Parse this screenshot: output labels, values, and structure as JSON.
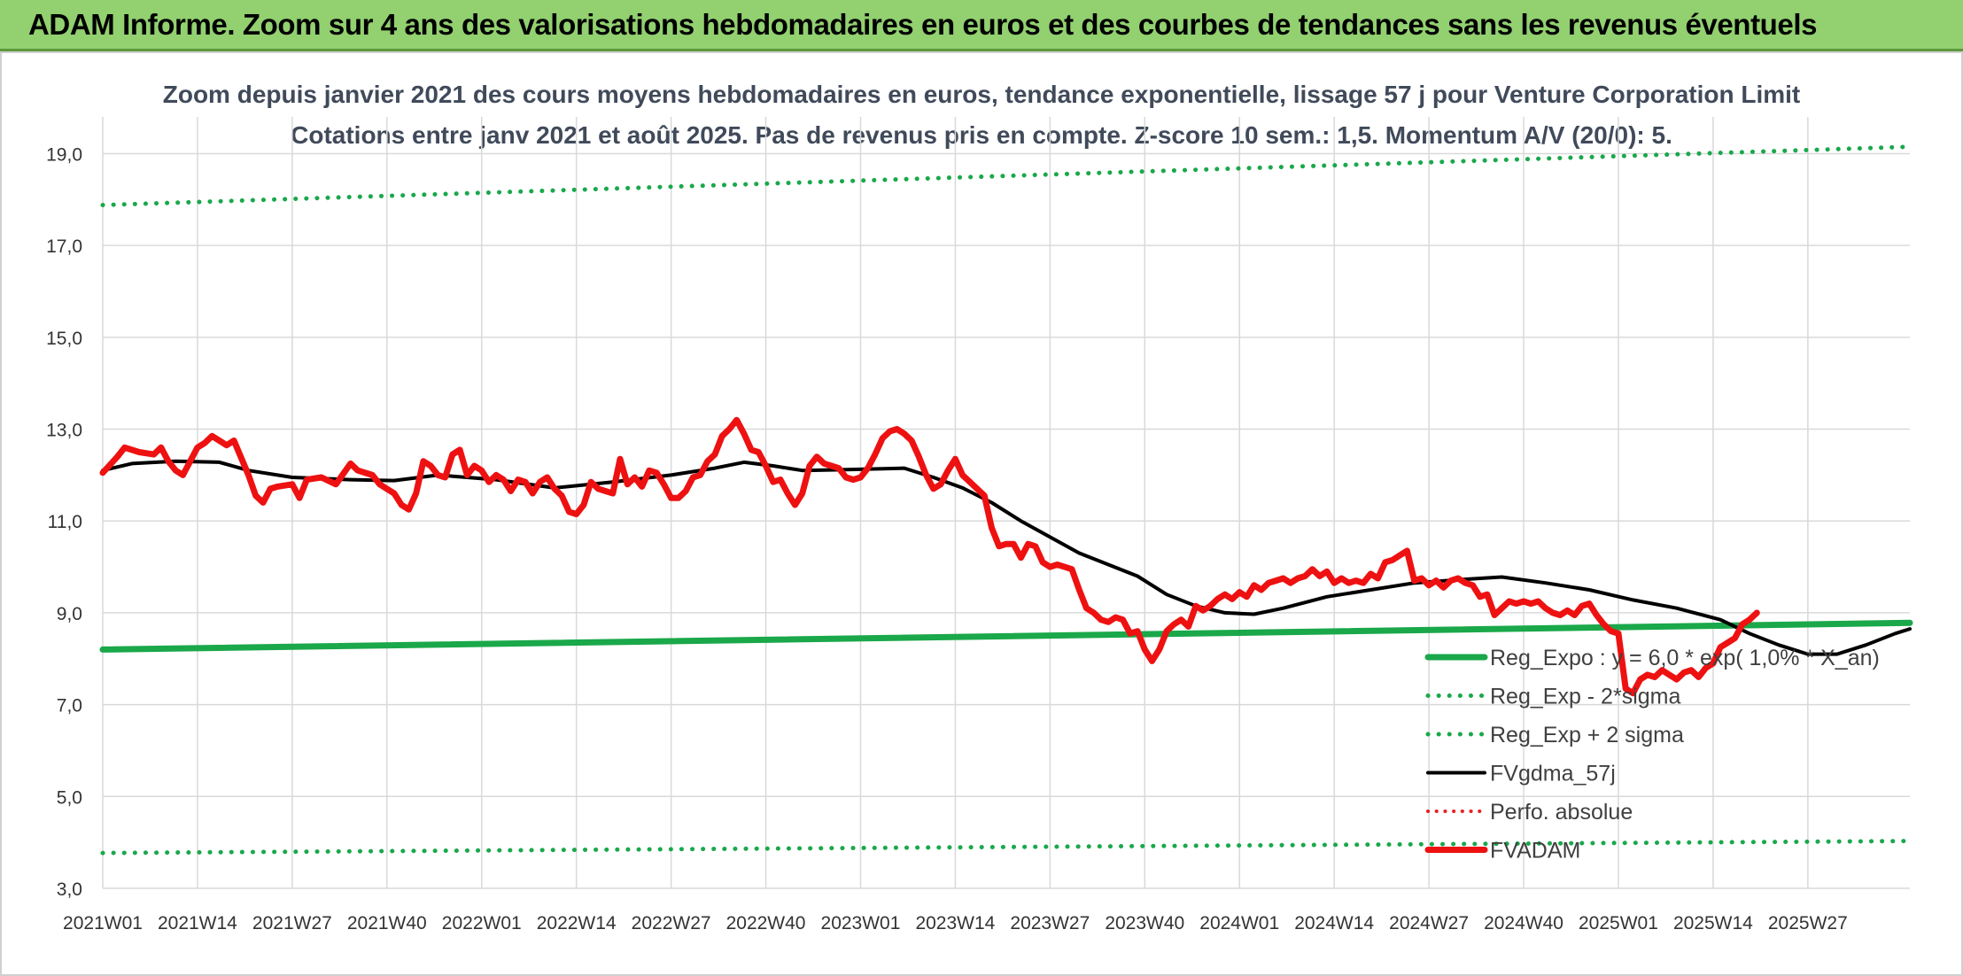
{
  "banner": {
    "title": "ADAM Informe. Zoom sur 4 ans des valorisations hebdomadaires en euros et des courbes de tendances sans les revenus éventuels"
  },
  "chart_data": {
    "type": "line",
    "title": "Zoom depuis janvier 2021 des cours moyens hebdomadaires en euros, tendance exponentielle, lissage 57 j pour Venture Corporation Limit",
    "subtitle": "Cotations entre janv 2021 et août 2025. Pas de revenus pris en compte. Z-score 10 sem.: 1,5. Momentum A/V (20/0): 5.",
    "ylim": [
      3,
      19.8
    ],
    "yticks": [
      "3,0",
      "5,0",
      "7,0",
      "9,0",
      "11,0",
      "13,0",
      "15,0",
      "17,0",
      "19,0"
    ],
    "ytick_values": [
      3,
      5,
      7,
      9,
      11,
      13,
      15,
      17,
      19
    ],
    "xticks": [
      "2021W01",
      "2021W14",
      "2021W27",
      "2021W40",
      "2022W01",
      "2022W14",
      "2022W27",
      "2022W40",
      "2023W01",
      "2023W14",
      "2023W27",
      "2023W40",
      "2024W01",
      "2024W14",
      "2024W27",
      "2024W40",
      "2025W01",
      "2025W14",
      "2025W27"
    ],
    "grid": true,
    "legend_position": "bottom-right",
    "x_step": "weekly",
    "series": [
      {
        "name": "Reg_Expo : y = 6,0 * exp( 1,0% * X_an)",
        "style": "solid",
        "width": 7,
        "color": "#1aa84a",
        "points": [
          [
            0,
            8.2
          ],
          [
            248,
            8.78
          ]
        ]
      },
      {
        "name": "Reg_Exp - 2*sigma",
        "style": "dotted",
        "width": 5,
        "color": "#1aa84a",
        "points": [
          [
            0,
            3.77
          ],
          [
            248,
            4.03
          ]
        ]
      },
      {
        "name": "Reg_Exp + 2 sigma",
        "style": "dotted",
        "width": 5,
        "color": "#1aa84a",
        "points": [
          [
            0,
            17.88
          ],
          [
            248,
            19.15
          ]
        ]
      },
      {
        "name": "FVgdma_57j",
        "style": "solid",
        "width": 4,
        "color": "#000000",
        "points": [
          [
            0,
            12.1
          ],
          [
            4,
            12.25
          ],
          [
            10,
            12.3
          ],
          [
            16,
            12.28
          ],
          [
            20,
            12.1
          ],
          [
            26,
            11.95
          ],
          [
            34,
            11.9
          ],
          [
            40,
            11.88
          ],
          [
            46,
            12.0
          ],
          [
            54,
            11.9
          ],
          [
            62,
            11.72
          ],
          [
            70,
            11.85
          ],
          [
            78,
            12.0
          ],
          [
            84,
            12.15
          ],
          [
            88,
            12.28
          ],
          [
            92,
            12.2
          ],
          [
            96,
            12.1
          ],
          [
            102,
            12.12
          ],
          [
            110,
            12.15
          ],
          [
            114,
            11.95
          ],
          [
            118,
            11.72
          ],
          [
            122,
            11.4
          ],
          [
            126,
            11.0
          ],
          [
            130,
            10.65
          ],
          [
            134,
            10.3
          ],
          [
            138,
            10.05
          ],
          [
            142,
            9.8
          ],
          [
            146,
            9.4
          ],
          [
            150,
            9.15
          ],
          [
            154,
            9.0
          ],
          [
            158,
            8.97
          ],
          [
            162,
            9.1
          ],
          [
            168,
            9.35
          ],
          [
            174,
            9.5
          ],
          [
            180,
            9.65
          ],
          [
            186,
            9.72
          ],
          [
            192,
            9.78
          ],
          [
            198,
            9.65
          ],
          [
            204,
            9.5
          ],
          [
            210,
            9.28
          ],
          [
            216,
            9.1
          ],
          [
            222,
            8.85
          ],
          [
            226,
            8.55
          ],
          [
            230,
            8.3
          ],
          [
            234,
            8.1
          ],
          [
            238,
            8.1
          ],
          [
            242,
            8.3
          ],
          [
            246,
            8.55
          ],
          [
            248,
            8.65
          ]
        ]
      },
      {
        "name": "Perfo. absolue",
        "style": "dotted",
        "width": 4,
        "color": "#e82020",
        "points": []
      },
      {
        "name": "FVADAM",
        "style": "solid",
        "width": 7,
        "color": "#ee1111",
        "points": [
          [
            0,
            12.05
          ],
          [
            2,
            12.4
          ],
          [
            3,
            12.6
          ],
          [
            5,
            12.5
          ],
          [
            7,
            12.45
          ],
          [
            8,
            12.6
          ],
          [
            9,
            12.3
          ],
          [
            10,
            12.1
          ],
          [
            11,
            12.0
          ],
          [
            13,
            12.6
          ],
          [
            14,
            12.7
          ],
          [
            15,
            12.85
          ],
          [
            16,
            12.75
          ],
          [
            17,
            12.65
          ],
          [
            18,
            12.75
          ],
          [
            20,
            12.0
          ],
          [
            21,
            11.55
          ],
          [
            22,
            11.4
          ],
          [
            23,
            11.7
          ],
          [
            24,
            11.75
          ],
          [
            26,
            11.8
          ],
          [
            27,
            11.5
          ],
          [
            28,
            11.9
          ],
          [
            30,
            11.95
          ],
          [
            32,
            11.8
          ],
          [
            34,
            12.25
          ],
          [
            35,
            12.1
          ],
          [
            37,
            12.0
          ],
          [
            38,
            11.8
          ],
          [
            40,
            11.6
          ],
          [
            41,
            11.35
          ],
          [
            42,
            11.25
          ],
          [
            43,
            11.6
          ],
          [
            44,
            12.3
          ],
          [
            45,
            12.2
          ],
          [
            46,
            12.0
          ],
          [
            47,
            11.95
          ],
          [
            48,
            12.45
          ],
          [
            49,
            12.55
          ],
          [
            50,
            12.0
          ],
          [
            51,
            12.2
          ],
          [
            52,
            12.1
          ],
          [
            53,
            11.85
          ],
          [
            54,
            12.0
          ],
          [
            55,
            11.9
          ],
          [
            56,
            11.65
          ],
          [
            57,
            11.9
          ],
          [
            58,
            11.85
          ],
          [
            59,
            11.6
          ],
          [
            60,
            11.85
          ],
          [
            61,
            11.95
          ],
          [
            62,
            11.7
          ],
          [
            63,
            11.55
          ],
          [
            64,
            11.2
          ],
          [
            65,
            11.15
          ],
          [
            66,
            11.35
          ],
          [
            67,
            11.85
          ],
          [
            68,
            11.7
          ],
          [
            70,
            11.6
          ],
          [
            71,
            12.35
          ],
          [
            72,
            11.8
          ],
          [
            73,
            11.95
          ],
          [
            74,
            11.75
          ],
          [
            75,
            12.1
          ],
          [
            76,
            12.05
          ],
          [
            77,
            11.8
          ],
          [
            78,
            11.5
          ],
          [
            79,
            11.5
          ],
          [
            80,
            11.65
          ],
          [
            81,
            11.95
          ],
          [
            82,
            12.0
          ],
          [
            83,
            12.3
          ],
          [
            84,
            12.45
          ],
          [
            85,
            12.85
          ],
          [
            86,
            13.0
          ],
          [
            87,
            13.2
          ],
          [
            88,
            12.9
          ],
          [
            89,
            12.55
          ],
          [
            90,
            12.5
          ],
          [
            91,
            12.2
          ],
          [
            92,
            11.85
          ],
          [
            93,
            11.9
          ],
          [
            94,
            11.6
          ],
          [
            95,
            11.35
          ],
          [
            96,
            11.6
          ],
          [
            97,
            12.2
          ],
          [
            98,
            12.4
          ],
          [
            99,
            12.25
          ],
          [
            100,
            12.2
          ],
          [
            101,
            12.15
          ],
          [
            102,
            11.95
          ],
          [
            103,
            11.9
          ],
          [
            104,
            11.95
          ],
          [
            105,
            12.15
          ],
          [
            106,
            12.45
          ],
          [
            107,
            12.8
          ],
          [
            108,
            12.95
          ],
          [
            109,
            13.0
          ],
          [
            110,
            12.9
          ],
          [
            111,
            12.75
          ],
          [
            112,
            12.4
          ],
          [
            113,
            12.0
          ],
          [
            114,
            11.7
          ],
          [
            115,
            11.8
          ],
          [
            116,
            12.1
          ],
          [
            117,
            12.35
          ],
          [
            118,
            12.0
          ],
          [
            119,
            11.85
          ],
          [
            120,
            11.7
          ],
          [
            121,
            11.55
          ],
          [
            122,
            10.85
          ],
          [
            123,
            10.45
          ],
          [
            124,
            10.5
          ],
          [
            125,
            10.5
          ],
          [
            126,
            10.2
          ],
          [
            127,
            10.5
          ],
          [
            128,
            10.45
          ],
          [
            129,
            10.1
          ],
          [
            130,
            10.0
          ],
          [
            131,
            10.05
          ],
          [
            132,
            10.0
          ],
          [
            133,
            9.95
          ],
          [
            134,
            9.5
          ],
          [
            135,
            9.1
          ],
          [
            136,
            9.0
          ],
          [
            137,
            8.85
          ],
          [
            138,
            8.8
          ],
          [
            139,
            8.9
          ],
          [
            140,
            8.85
          ],
          [
            141,
            8.55
          ],
          [
            142,
            8.6
          ],
          [
            143,
            8.2
          ],
          [
            144,
            7.95
          ],
          [
            145,
            8.2
          ],
          [
            146,
            8.6
          ],
          [
            147,
            8.75
          ],
          [
            148,
            8.85
          ],
          [
            149,
            8.7
          ],
          [
            150,
            9.15
          ],
          [
            151,
            9.05
          ],
          [
            152,
            9.15
          ],
          [
            153,
            9.3
          ],
          [
            154,
            9.4
          ],
          [
            155,
            9.3
          ],
          [
            156,
            9.45
          ],
          [
            157,
            9.35
          ],
          [
            158,
            9.6
          ],
          [
            159,
            9.5
          ],
          [
            160,
            9.65
          ],
          [
            161,
            9.7
          ],
          [
            162,
            9.75
          ],
          [
            163,
            9.65
          ],
          [
            164,
            9.75
          ],
          [
            165,
            9.8
          ],
          [
            166,
            9.95
          ],
          [
            167,
            9.8
          ],
          [
            168,
            9.9
          ],
          [
            169,
            9.65
          ],
          [
            170,
            9.75
          ],
          [
            171,
            9.65
          ],
          [
            172,
            9.7
          ],
          [
            173,
            9.65
          ],
          [
            174,
            9.85
          ],
          [
            175,
            9.75
          ],
          [
            176,
            10.1
          ],
          [
            177,
            10.15
          ],
          [
            178,
            10.25
          ],
          [
            179,
            10.35
          ],
          [
            180,
            9.7
          ],
          [
            181,
            9.75
          ],
          [
            182,
            9.6
          ],
          [
            183,
            9.7
          ],
          [
            184,
            9.55
          ],
          [
            185,
            9.7
          ],
          [
            186,
            9.75
          ],
          [
            187,
            9.65
          ],
          [
            188,
            9.6
          ],
          [
            189,
            9.35
          ],
          [
            190,
            9.4
          ],
          [
            191,
            8.95
          ],
          [
            192,
            9.1
          ],
          [
            193,
            9.25
          ],
          [
            194,
            9.2
          ],
          [
            195,
            9.25
          ],
          [
            196,
            9.2
          ],
          [
            197,
            9.25
          ],
          [
            198,
            9.1
          ],
          [
            199,
            9.0
          ],
          [
            200,
            8.95
          ],
          [
            201,
            9.05
          ],
          [
            202,
            8.95
          ],
          [
            203,
            9.15
          ],
          [
            204,
            9.2
          ],
          [
            205,
            8.95
          ],
          [
            206,
            8.75
          ],
          [
            207,
            8.6
          ],
          [
            208,
            8.55
          ],
          [
            209,
            7.35
          ],
          [
            210,
            7.25
          ],
          [
            211,
            7.55
          ],
          [
            212,
            7.65
          ],
          [
            213,
            7.6
          ],
          [
            214,
            7.75
          ],
          [
            215,
            7.65
          ],
          [
            216,
            7.55
          ],
          [
            217,
            7.7
          ],
          [
            218,
            7.75
          ],
          [
            219,
            7.6
          ],
          [
            220,
            7.8
          ],
          [
            221,
            7.9
          ],
          [
            222,
            8.25
          ],
          [
            223,
            8.35
          ],
          [
            224,
            8.45
          ],
          [
            225,
            8.75
          ],
          [
            226,
            8.85
          ],
          [
            227,
            9.0
          ]
        ]
      }
    ]
  }
}
